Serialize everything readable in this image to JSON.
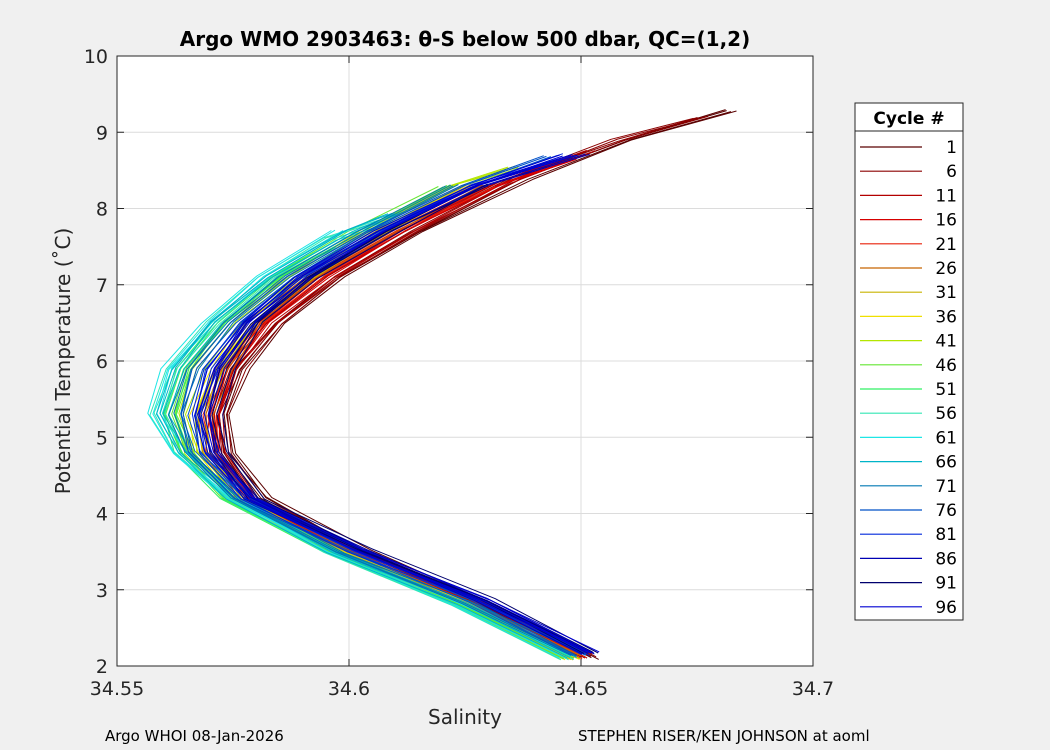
{
  "chart_data": {
    "type": "line",
    "title": "Argo WMO 2903463: θ-S below 500 dbar,  QC=(1,2)",
    "xlabel": "Salinity",
    "ylabel": "Potential Temperature (˚C)",
    "xlim": [
      34.55,
      34.7
    ],
    "ylim": [
      2,
      10
    ],
    "xticks": [
      34.55,
      34.6,
      34.65,
      34.7
    ],
    "xtick_labels": [
      "34.55",
      "34.6",
      "34.65",
      "34.7"
    ],
    "yticks": [
      2,
      3,
      4,
      5,
      6,
      7,
      8,
      9,
      10
    ],
    "ytick_labels": [
      "2",
      "3",
      "4",
      "5",
      "6",
      "7",
      "8",
      "9",
      "10"
    ],
    "grid": true,
    "legend_title": "Cycle #",
    "legend_position": "right",
    "series": [
      {
        "name": "1",
        "color": "#5a0000",
        "profile": [
          [
            34.652,
            2.1
          ],
          [
            34.63,
            2.8
          ],
          [
            34.603,
            3.5
          ],
          [
            34.582,
            4.2
          ],
          [
            34.574,
            4.8
          ],
          [
            34.573,
            5.3
          ],
          [
            34.577,
            5.9
          ],
          [
            34.585,
            6.5
          ],
          [
            34.598,
            7.1
          ],
          [
            34.615,
            7.7
          ],
          [
            34.638,
            8.4
          ],
          [
            34.66,
            8.9
          ],
          [
            34.682,
            9.28
          ]
        ]
      },
      {
        "name": "6",
        "color": "#8b0000",
        "profile": [
          [
            34.652,
            2.12
          ],
          [
            34.63,
            2.82
          ],
          [
            34.602,
            3.5
          ],
          [
            34.58,
            4.2
          ],
          [
            34.573,
            4.8
          ],
          [
            34.572,
            5.3
          ],
          [
            34.576,
            5.9
          ],
          [
            34.584,
            6.5
          ],
          [
            34.597,
            7.1
          ],
          [
            34.614,
            7.7
          ],
          [
            34.636,
            8.4
          ],
          [
            34.658,
            8.9
          ],
          [
            34.676,
            9.2
          ]
        ]
      },
      {
        "name": "11",
        "color": "#b30000",
        "profile": [
          [
            34.651,
            2.15
          ],
          [
            34.628,
            2.85
          ],
          [
            34.601,
            3.52
          ],
          [
            34.579,
            4.2
          ],
          [
            34.572,
            4.8
          ],
          [
            34.572,
            5.3
          ],
          [
            34.575,
            5.9
          ],
          [
            34.583,
            6.5
          ],
          [
            34.596,
            7.1
          ],
          [
            34.613,
            7.7
          ],
          [
            34.634,
            8.35
          ],
          [
            34.652,
            8.75
          ]
        ]
      },
      {
        "name": "16",
        "color": "#d60000",
        "profile": [
          [
            34.65,
            2.12
          ],
          [
            34.628,
            2.82
          ],
          [
            34.6,
            3.5
          ],
          [
            34.578,
            4.2
          ],
          [
            34.571,
            4.8
          ],
          [
            34.571,
            5.3
          ],
          [
            34.574,
            5.9
          ],
          [
            34.582,
            6.5
          ],
          [
            34.594,
            7.1
          ],
          [
            34.611,
            7.7
          ],
          [
            34.632,
            8.3
          ],
          [
            34.648,
            8.65
          ]
        ]
      },
      {
        "name": "21",
        "color": "#e8200a",
        "profile": [
          [
            34.65,
            2.1
          ],
          [
            34.627,
            2.8
          ],
          [
            34.6,
            3.5
          ],
          [
            34.578,
            4.2
          ],
          [
            34.571,
            4.8
          ],
          [
            34.57,
            5.3
          ],
          [
            34.574,
            5.9
          ],
          [
            34.581,
            6.5
          ],
          [
            34.593,
            7.1
          ],
          [
            34.61,
            7.7
          ],
          [
            34.63,
            8.3
          ]
        ]
      },
      {
        "name": "26",
        "color": "#c86400",
        "profile": [
          [
            34.649,
            2.12
          ],
          [
            34.626,
            2.8
          ],
          [
            34.599,
            3.5
          ],
          [
            34.577,
            4.2
          ],
          [
            34.57,
            4.8
          ],
          [
            34.569,
            5.3
          ],
          [
            34.573,
            5.9
          ],
          [
            34.58,
            6.5
          ],
          [
            34.592,
            7.1
          ],
          [
            34.609,
            7.7
          ],
          [
            34.628,
            8.3
          ]
        ]
      },
      {
        "name": "31",
        "color": "#c8b400",
        "profile": [
          [
            34.648,
            2.1
          ],
          [
            34.625,
            2.8
          ],
          [
            34.598,
            3.5
          ],
          [
            34.576,
            4.2
          ],
          [
            34.569,
            4.8
          ],
          [
            34.568,
            5.3
          ],
          [
            34.572,
            5.9
          ],
          [
            34.579,
            6.5
          ],
          [
            34.591,
            7.1
          ],
          [
            34.607,
            7.7
          ],
          [
            34.626,
            8.3
          ]
        ]
      },
      {
        "name": "36",
        "color": "#f0e000",
        "profile": [
          [
            34.648,
            2.1
          ],
          [
            34.625,
            2.8
          ],
          [
            34.598,
            3.5
          ],
          [
            34.576,
            4.2
          ],
          [
            34.568,
            4.8
          ],
          [
            34.567,
            5.3
          ],
          [
            34.571,
            5.9
          ],
          [
            34.578,
            6.5
          ],
          [
            34.59,
            7.1
          ],
          [
            34.606,
            7.7
          ],
          [
            34.625,
            8.3
          ]
        ]
      },
      {
        "name": "41",
        "color": "#b4e600",
        "profile": [
          [
            34.648,
            2.1
          ],
          [
            34.624,
            2.8
          ],
          [
            34.597,
            3.5
          ],
          [
            34.575,
            4.2
          ],
          [
            34.566,
            4.8
          ],
          [
            34.564,
            5.3
          ],
          [
            34.567,
            5.9
          ],
          [
            34.575,
            6.5
          ],
          [
            34.587,
            7.1
          ],
          [
            34.604,
            7.7
          ],
          [
            34.623,
            8.3
          ],
          [
            34.636,
            8.55
          ]
        ]
      },
      {
        "name": "46",
        "color": "#64e632",
        "profile": [
          [
            34.647,
            2.1
          ],
          [
            34.623,
            2.8
          ],
          [
            34.596,
            3.5
          ],
          [
            34.574,
            4.2
          ],
          [
            34.565,
            4.8
          ],
          [
            34.562,
            5.3
          ],
          [
            34.565,
            5.9
          ],
          [
            34.573,
            6.5
          ],
          [
            34.585,
            7.1
          ],
          [
            34.602,
            7.7
          ],
          [
            34.621,
            8.3
          ]
        ]
      },
      {
        "name": "51",
        "color": "#32f064",
        "profile": [
          [
            34.647,
            2.1
          ],
          [
            34.623,
            2.8
          ],
          [
            34.596,
            3.5
          ],
          [
            34.574,
            4.2
          ],
          [
            34.564,
            4.8
          ],
          [
            34.561,
            5.3
          ],
          [
            34.564,
            5.9
          ],
          [
            34.572,
            6.5
          ],
          [
            34.584,
            7.1
          ],
          [
            34.596,
            7.5
          ]
        ]
      },
      {
        "name": "56",
        "color": "#32e6b4",
        "profile": [
          [
            34.647,
            2.1
          ],
          [
            34.623,
            2.8
          ],
          [
            34.596,
            3.5
          ],
          [
            34.574,
            4.2
          ],
          [
            34.563,
            4.8
          ],
          [
            34.559,
            5.3
          ],
          [
            34.562,
            5.9
          ],
          [
            34.571,
            6.5
          ],
          [
            34.582,
            7.1
          ],
          [
            34.596,
            7.6
          ],
          [
            34.608,
            7.85
          ]
        ]
      },
      {
        "name": "61",
        "color": "#1ee6e6",
        "profile": [
          [
            34.647,
            2.12
          ],
          [
            34.623,
            2.82
          ],
          [
            34.596,
            3.5
          ],
          [
            34.574,
            4.2
          ],
          [
            34.563,
            4.8
          ],
          [
            34.558,
            5.3
          ],
          [
            34.561,
            5.9
          ],
          [
            34.57,
            6.5
          ],
          [
            34.581,
            7.1
          ],
          [
            34.598,
            7.7
          ]
        ]
      },
      {
        "name": "66",
        "color": "#00b4c8",
        "profile": [
          [
            34.648,
            2.12
          ],
          [
            34.624,
            2.82
          ],
          [
            34.597,
            3.5
          ],
          [
            34.575,
            4.2
          ],
          [
            34.564,
            4.8
          ],
          [
            34.56,
            5.3
          ],
          [
            34.563,
            5.9
          ],
          [
            34.571,
            6.5
          ],
          [
            34.583,
            7.1
          ],
          [
            34.6,
            7.7
          ],
          [
            34.61,
            7.95
          ]
        ]
      },
      {
        "name": "71",
        "color": "#0078b4",
        "profile": [
          [
            34.649,
            2.14
          ],
          [
            34.626,
            2.83
          ],
          [
            34.598,
            3.5
          ],
          [
            34.576,
            4.2
          ],
          [
            34.566,
            4.8
          ],
          [
            34.563,
            5.3
          ],
          [
            34.566,
            5.9
          ],
          [
            34.574,
            6.5
          ],
          [
            34.586,
            7.1
          ],
          [
            34.603,
            7.7
          ],
          [
            34.622,
            8.3
          ]
        ]
      },
      {
        "name": "76",
        "color": "#0050c8",
        "profile": [
          [
            34.65,
            2.15
          ],
          [
            34.627,
            2.85
          ],
          [
            34.6,
            3.52
          ],
          [
            34.577,
            4.2
          ],
          [
            34.567,
            4.8
          ],
          [
            34.565,
            5.3
          ],
          [
            34.568,
            5.9
          ],
          [
            34.576,
            6.5
          ],
          [
            34.588,
            7.1
          ],
          [
            34.605,
            7.7
          ],
          [
            34.625,
            8.3
          ],
          [
            34.643,
            8.7
          ]
        ]
      },
      {
        "name": "81",
        "color": "#0028dc",
        "profile": [
          [
            34.651,
            2.16
          ],
          [
            34.628,
            2.85
          ],
          [
            34.601,
            3.52
          ],
          [
            34.578,
            4.2
          ],
          [
            34.569,
            4.8
          ],
          [
            34.567,
            5.3
          ],
          [
            34.57,
            5.9
          ],
          [
            34.578,
            6.5
          ],
          [
            34.59,
            7.1
          ],
          [
            34.607,
            7.7
          ],
          [
            34.627,
            8.3
          ],
          [
            34.648,
            8.7
          ]
        ]
      },
      {
        "name": "86",
        "color": "#0000b4",
        "profile": [
          [
            34.652,
            2.17
          ],
          [
            34.629,
            2.86
          ],
          [
            34.602,
            3.52
          ],
          [
            34.579,
            4.2
          ],
          [
            34.571,
            4.8
          ],
          [
            34.569,
            5.3
          ],
          [
            34.572,
            5.9
          ],
          [
            34.579,
            6.5
          ],
          [
            34.591,
            7.1
          ],
          [
            34.608,
            7.7
          ],
          [
            34.628,
            8.3
          ],
          [
            34.65,
            8.7
          ]
        ]
      },
      {
        "name": "91",
        "color": "#00006e",
        "profile": [
          [
            34.652,
            2.18
          ],
          [
            34.63,
            2.87
          ],
          [
            34.603,
            3.53
          ],
          [
            34.58,
            4.2
          ],
          [
            34.573,
            4.8
          ],
          [
            34.571,
            5.3
          ],
          [
            34.574,
            5.9
          ],
          [
            34.58,
            6.5
          ],
          [
            34.592,
            7.1
          ],
          [
            34.609,
            7.7
          ],
          [
            34.629,
            8.3
          ]
        ]
      },
      {
        "name": "96",
        "color": "#0000d2",
        "profile": [
          [
            34.652,
            2.18
          ],
          [
            34.629,
            2.87
          ],
          [
            34.602,
            3.53
          ],
          [
            34.579,
            4.2
          ],
          [
            34.57,
            4.8
          ],
          [
            34.568,
            5.3
          ],
          [
            34.571,
            5.9
          ],
          [
            34.578,
            6.5
          ],
          [
            34.59,
            7.1
          ],
          [
            34.607,
            7.7
          ],
          [
            34.627,
            8.3
          ],
          [
            34.647,
            8.7
          ]
        ]
      }
    ]
  },
  "footer": {
    "left": "Argo WHOI 08-Jan-2026",
    "right": "STEPHEN RISER/KEN JOHNSON at aoml"
  }
}
